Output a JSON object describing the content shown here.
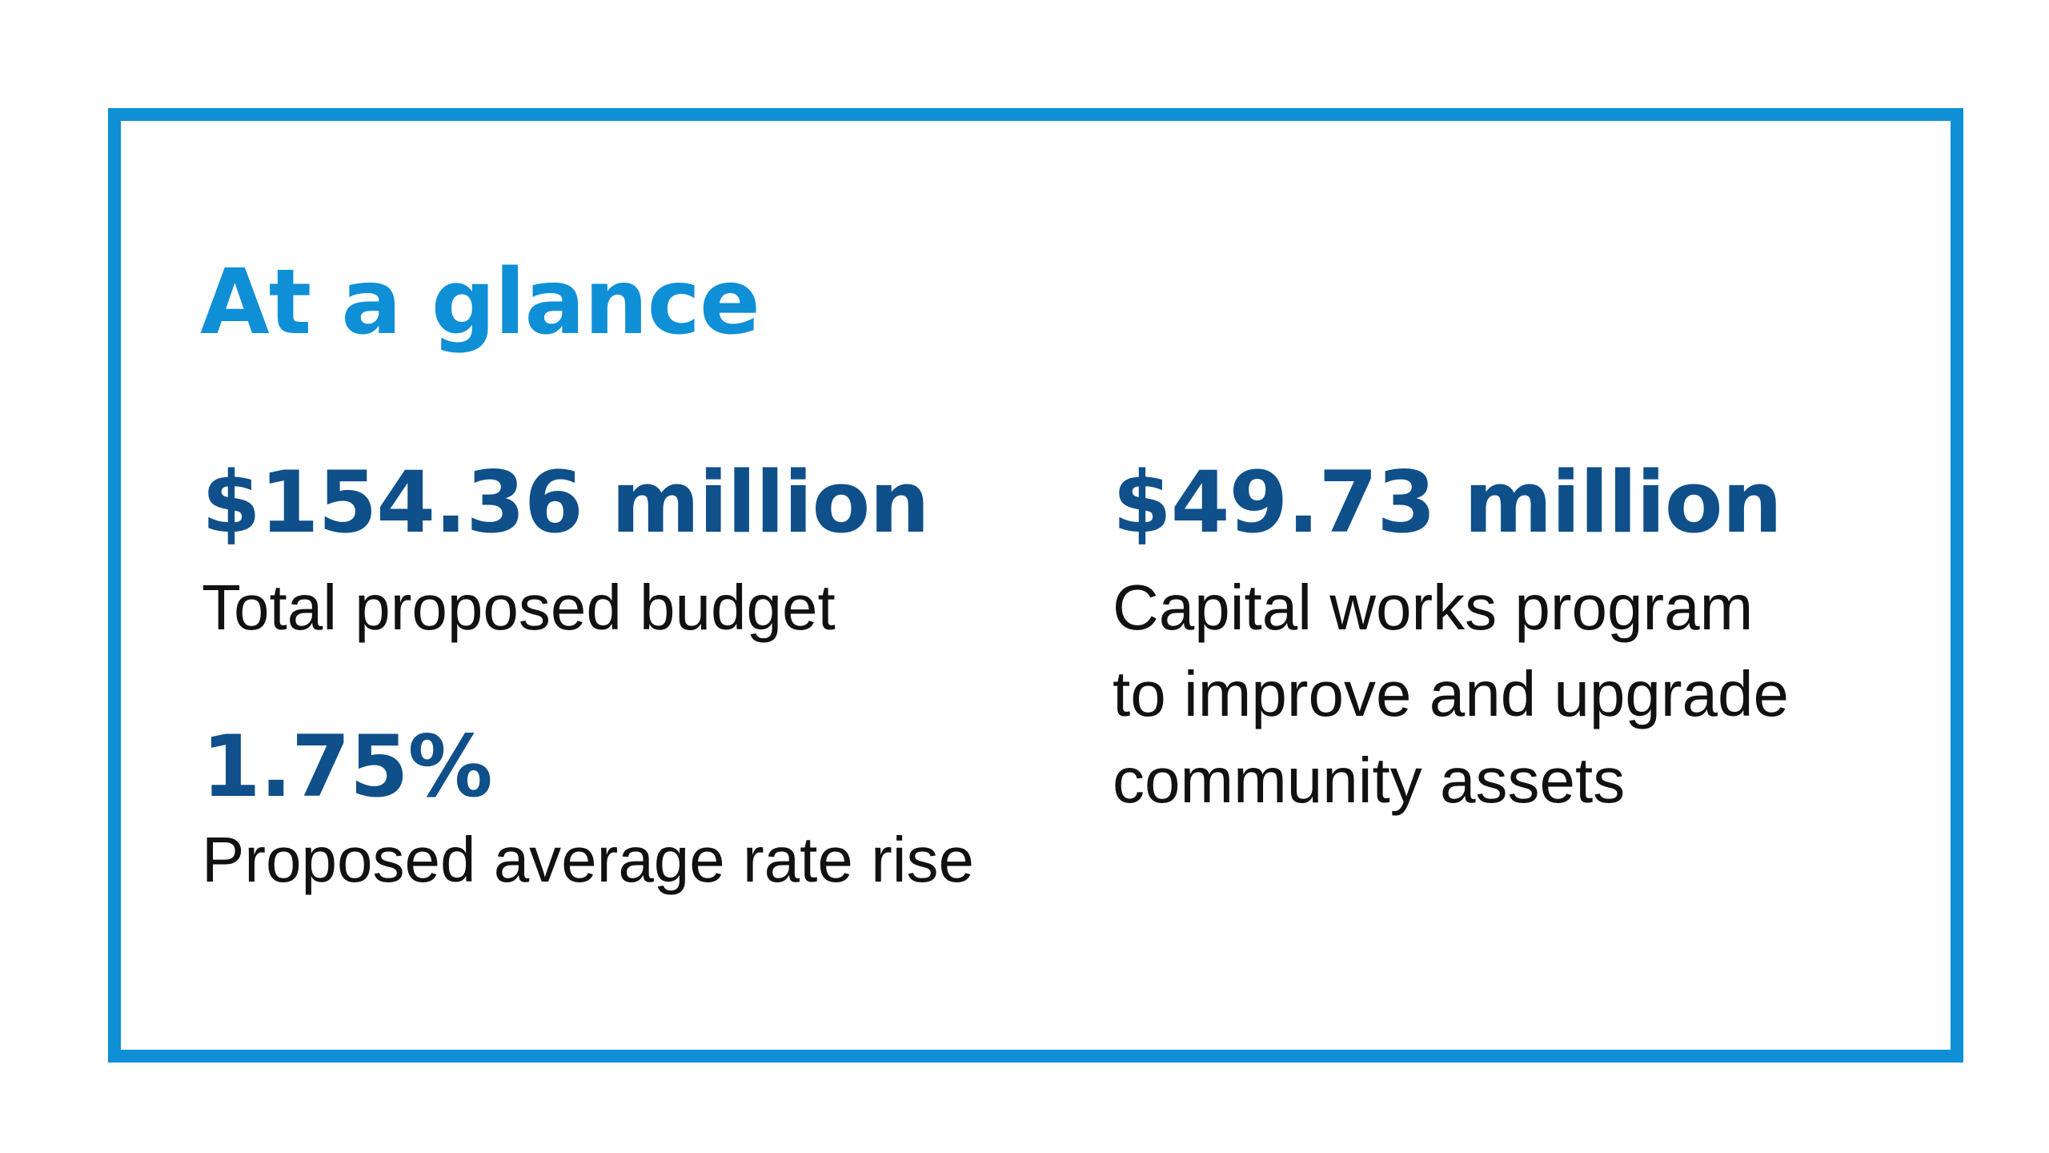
{
  "card": {
    "heading": "At a glance",
    "colors": {
      "accent": "#0f8fd6",
      "value": "#0f4f8a",
      "label": "#111111",
      "background": "#ffffff"
    }
  },
  "stats": [
    {
      "value": "$154.36 million",
      "label": "Total proposed budget"
    },
    {
      "value": "1.75%",
      "label": "Proposed average rate rise"
    },
    {
      "value": "$49.73 million",
      "label_lines": [
        "Capital works program",
        "to improve and upgrade",
        "community assets"
      ]
    }
  ]
}
